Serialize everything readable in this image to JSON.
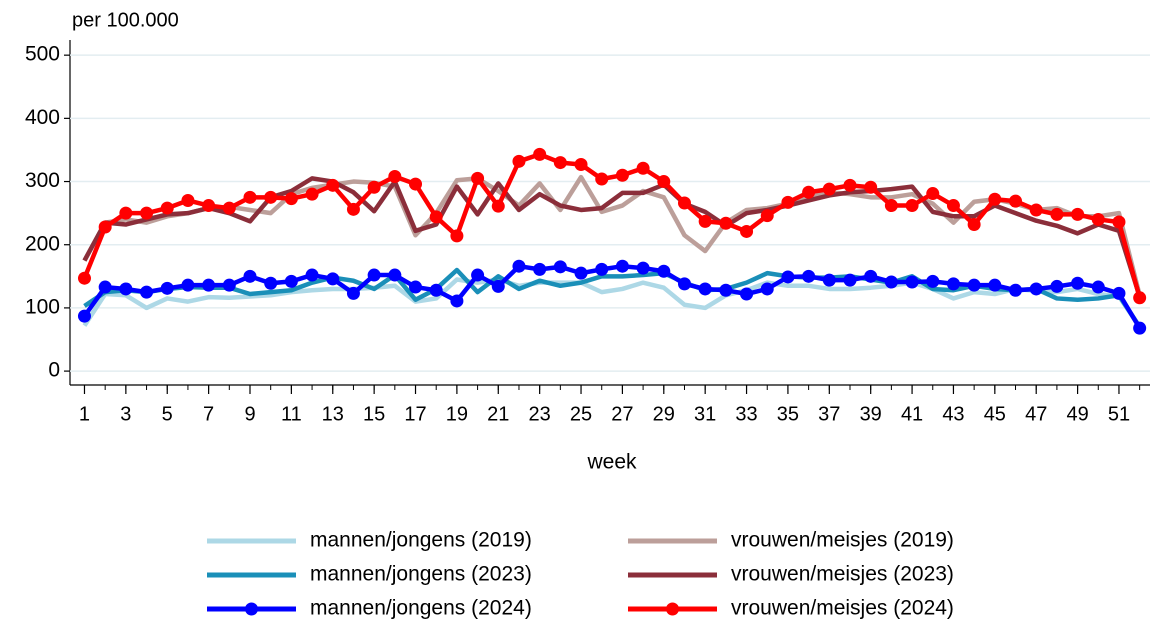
{
  "chart_data": {
    "type": "line",
    "y_label": "per 100.000",
    "x_label": "week",
    "x": [
      1,
      2,
      3,
      4,
      5,
      6,
      7,
      8,
      9,
      10,
      11,
      12,
      13,
      14,
      15,
      16,
      17,
      18,
      19,
      20,
      21,
      22,
      23,
      24,
      25,
      26,
      27,
      28,
      29,
      30,
      31,
      32,
      33,
      34,
      35,
      36,
      37,
      38,
      39,
      40,
      41,
      42,
      43,
      44,
      45,
      46,
      47,
      48,
      49,
      50,
      51,
      52
    ],
    "xlim": [
      0.3,
      52.5
    ],
    "xticks": [
      1,
      3,
      5,
      7,
      9,
      11,
      13,
      15,
      17,
      19,
      21,
      23,
      25,
      27,
      29,
      31,
      33,
      35,
      37,
      39,
      41,
      43,
      45,
      47,
      49,
      51
    ],
    "ylim": [
      -22,
      524
    ],
    "yticks": [
      0,
      100,
      200,
      300,
      400,
      500
    ],
    "grid": true,
    "series": [
      {
        "name": "mannen/jongens (2019)",
        "color": "#add8e6",
        "markers": false,
        "values": [
          72,
          122,
          120,
          100,
          115,
          110,
          117,
          116,
          118,
          120,
          125,
          128,
          130,
          130,
          132,
          135,
          110,
          115,
          145,
          140,
          145,
          135,
          140,
          140,
          140,
          125,
          130,
          140,
          132,
          105,
          100,
          120,
          128,
          140,
          135,
          135,
          130,
          130,
          132,
          135,
          140,
          130,
          115,
          125,
          122,
          130,
          127,
          125,
          130,
          122,
          118,
          70
        ]
      },
      {
        "name": "mannen/jongens (2023)",
        "color": "#1a8fb8",
        "markers": false,
        "values": [
          103,
          125,
          128,
          125,
          130,
          133,
          132,
          132,
          122,
          125,
          128,
          140,
          148,
          143,
          130,
          152,
          113,
          130,
          160,
          125,
          150,
          130,
          143,
          135,
          140,
          150,
          150,
          152,
          155,
          140,
          128,
          130,
          140,
          155,
          150,
          148,
          148,
          150,
          145,
          140,
          150,
          130,
          128,
          135,
          130,
          128,
          130,
          115,
          113,
          115,
          120,
          70
        ]
      },
      {
        "name": "mannen/jongens (2024)",
        "color": "#0000ff",
        "markers": true,
        "values": [
          87,
          133,
          130,
          125,
          131,
          136,
          136,
          136,
          150,
          139,
          142,
          152,
          146,
          123,
          152,
          152,
          133,
          128,
          111,
          152,
          134,
          166,
          161,
          165,
          155,
          161,
          166,
          163,
          158,
          138,
          130,
          128,
          122,
          130,
          149,
          150,
          144,
          144,
          150,
          141,
          141,
          142,
          138,
          136,
          136,
          128,
          130,
          134,
          139,
          133,
          123,
          68
        ]
      },
      {
        "name": "vrouwen/meisjes (2019)",
        "color": "#bc9f9a",
        "markers": false,
        "values": [
          175,
          235,
          240,
          235,
          245,
          250,
          258,
          260,
          255,
          250,
          280,
          290,
          295,
          300,
          298,
          292,
          215,
          250,
          302,
          305,
          285,
          262,
          297,
          255,
          307,
          252,
          262,
          285,
          275,
          215,
          190,
          235,
          255,
          258,
          265,
          275,
          283,
          280,
          275,
          275,
          280,
          265,
          235,
          268,
          272,
          265,
          255,
          258,
          245,
          245,
          250,
          120
        ]
      },
      {
        "name": "vrouwen/meisjes (2023)",
        "color": "#8b2e3a",
        "markers": false,
        "values": [
          175,
          235,
          232,
          240,
          248,
          250,
          258,
          250,
          237,
          275,
          285,
          305,
          300,
          283,
          253,
          300,
          222,
          232,
          292,
          248,
          297,
          255,
          280,
          262,
          255,
          258,
          282,
          282,
          295,
          265,
          252,
          230,
          250,
          255,
          262,
          270,
          278,
          283,
          285,
          288,
          292,
          252,
          245,
          245,
          262,
          250,
          238,
          230,
          218,
          232,
          222,
          118
        ]
      },
      {
        "name": "vrouwen/meisjes (2024)",
        "color": "#ff0000",
        "markers": true,
        "values": [
          147,
          228,
          250,
          250,
          258,
          270,
          262,
          258,
          275,
          275,
          273,
          280,
          294,
          256,
          291,
          308,
          296,
          244,
          214,
          305,
          261,
          332,
          343,
          330,
          327,
          304,
          310,
          321,
          300,
          266,
          237,
          234,
          221,
          246,
          267,
          283,
          288,
          294,
          291,
          262,
          262,
          281,
          262,
          232,
          272,
          269,
          255,
          248,
          248,
          240,
          236,
          116
        ]
      }
    ]
  }
}
